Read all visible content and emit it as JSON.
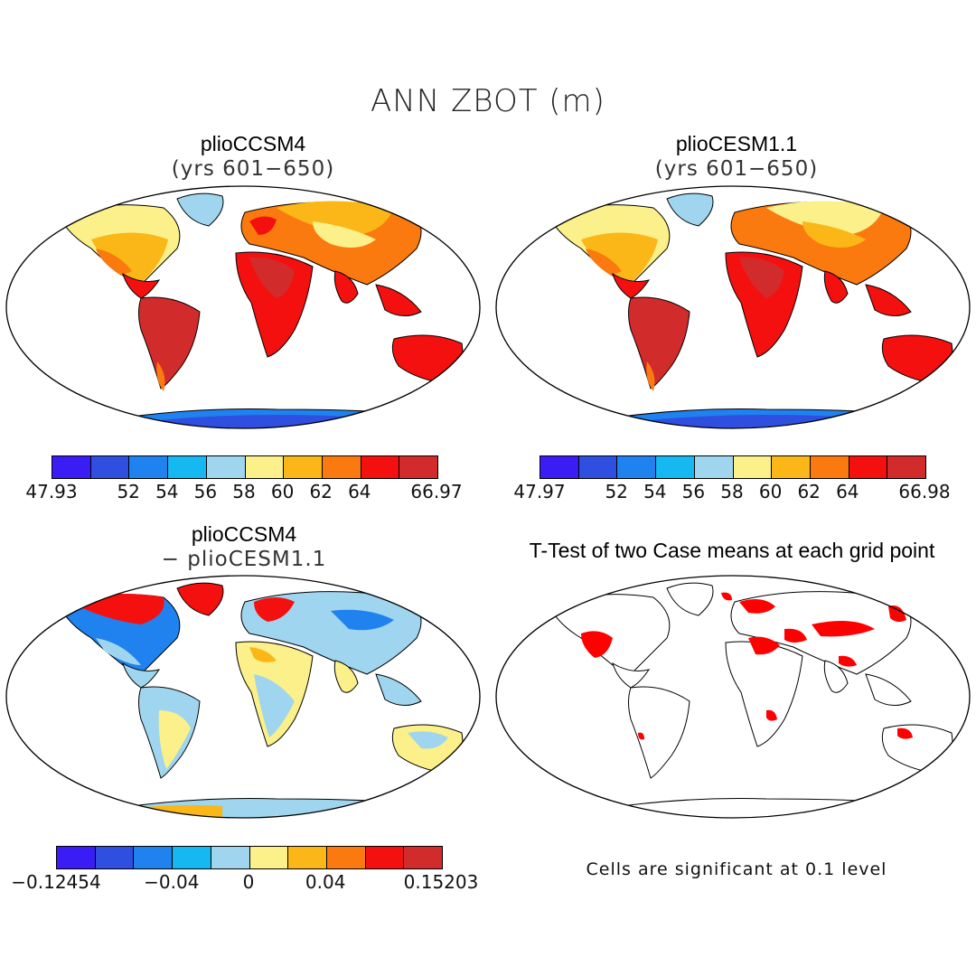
{
  "figure": {
    "title": "ANN ZBOT (m)"
  },
  "panels": {
    "p1": {
      "title": "plioCCSM4",
      "subtitle": "(yrs 601−650)"
    },
    "p2": {
      "title": "plioCESM1.1",
      "subtitle": "(yrs 601−650)"
    },
    "p3": {
      "title": "plioCCSM4",
      "subtitle": "− plioCESM1.1"
    },
    "p4": {
      "title": "T-Test of two Case means at each grid point",
      "note": "Cells are significant at 0.1 level"
    }
  },
  "colors": {
    "seq": [
      "#3a1cf5",
      "#2f4fe0",
      "#1f82ef",
      "#16b8f2",
      "#9fd5ef",
      "#fbf089",
      "#fbb617",
      "#fa7a10",
      "#f51010",
      "#d22b2b"
    ],
    "land_outline": "#000000",
    "significant": "#ff0000"
  },
  "colorbars": {
    "cb1": {
      "labels": [
        "47.93",
        "52",
        "54",
        "56",
        "58",
        "60",
        "62",
        "64",
        "66.97"
      ]
    },
    "cb2": {
      "labels": [
        "47.97",
        "52",
        "54",
        "56",
        "58",
        "60",
        "62",
        "64",
        "66.98"
      ]
    },
    "cb3": {
      "labels": [
        "−0.12454",
        "−0.04",
        "0",
        "0.04",
        "0.15203"
      ]
    }
  }
}
